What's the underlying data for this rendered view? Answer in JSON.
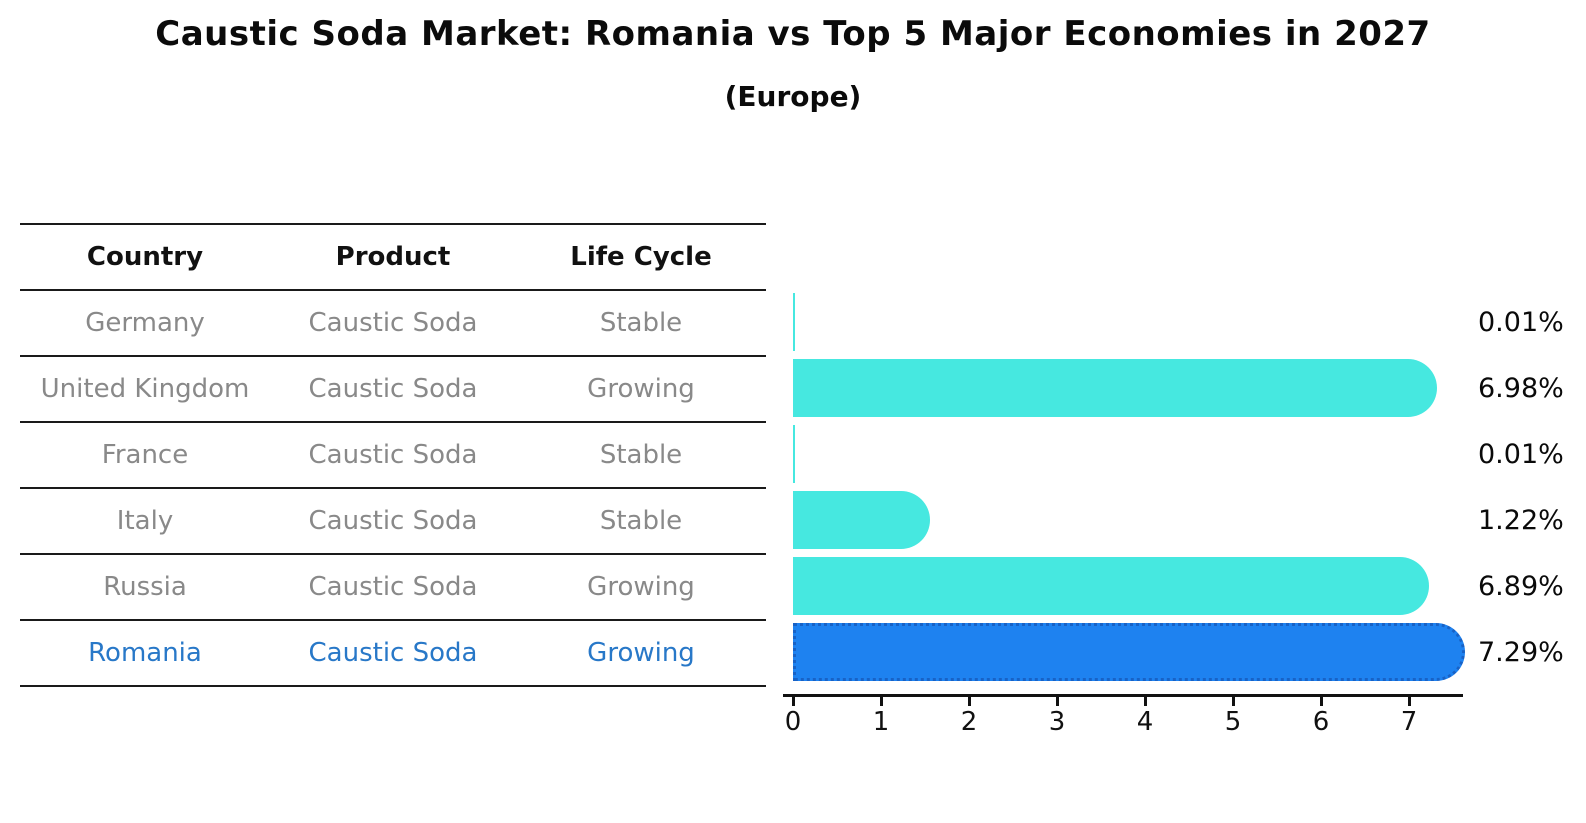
{
  "header": {
    "title": "Caustic Soda Market: Romania vs Top 5 Major Economies in 2027",
    "subtitle": "(Europe)"
  },
  "table": {
    "headers": [
      "Country",
      "Product",
      "Life Cycle"
    ],
    "rows": [
      {
        "country": "Germany",
        "product": "Caustic Soda",
        "life_cycle": "Stable",
        "highlighted": false
      },
      {
        "country": "United Kingdom",
        "product": "Caustic Soda",
        "life_cycle": "Growing",
        "highlighted": false
      },
      {
        "country": "France",
        "product": "Caustic Soda",
        "life_cycle": "Stable",
        "highlighted": false
      },
      {
        "country": "Italy",
        "product": "Caustic Soda",
        "life_cycle": "Stable",
        "highlighted": false
      },
      {
        "country": "Russia",
        "product": "Caustic Soda",
        "life_cycle": "Growing",
        "highlighted": false
      },
      {
        "country": "Romania",
        "product": "Caustic Soda",
        "life_cycle": "Growing",
        "highlighted": true
      }
    ]
  },
  "chart_data": {
    "type": "bar",
    "orientation": "horizontal",
    "title": "Caustic Soda Market: Romania vs Top 5 Major Economies in 2027 (Europe)",
    "categories": [
      "Germany",
      "United Kingdom",
      "France",
      "Italy",
      "Russia",
      "Romania"
    ],
    "values": [
      0.01,
      6.98,
      0.01,
      1.22,
      6.89,
      7.29
    ],
    "value_labels": [
      "0.01%",
      "6.98%",
      "0.01%",
      "1.22%",
      "6.89%",
      "7.29%"
    ],
    "x_ticks": [
      "0",
      "1",
      "2",
      "3",
      "4",
      "5",
      "6",
      "7"
    ],
    "xlim": [
      0,
      7.6
    ],
    "unit": "percent",
    "grid": false,
    "legend": false,
    "bar_color": "#46e8e0",
    "highlight_index": 5,
    "highlight_color": "#1e82f0",
    "highlight_border_color": "#1862c6"
  }
}
